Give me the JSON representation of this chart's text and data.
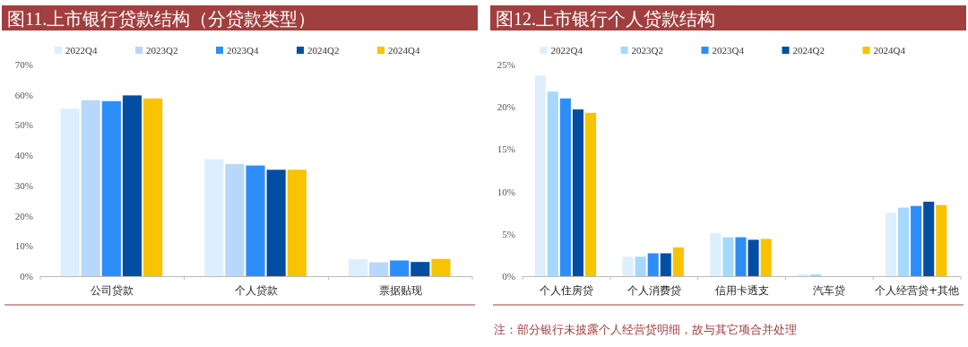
{
  "chart_data": [
    {
      "type": "bar",
      "title": "图11.上市银行贷款结构（分贷款类型）",
      "categories": [
        "公司贷款",
        "个人贷款",
        "票据贴现"
      ],
      "series": [
        {
          "name": "2022Q4",
          "color": "#ddeefc",
          "values": [
            55.4,
            38.7,
            5.6
          ]
        },
        {
          "name": "2023Q2",
          "color": "#b8d8fb",
          "values": [
            58.2,
            37.1,
            4.6
          ]
        },
        {
          "name": "2023Q4",
          "color": "#2e8ef7",
          "values": [
            57.9,
            36.6,
            5.2
          ]
        },
        {
          "name": "2024Q2",
          "color": "#034ea2",
          "values": [
            59.8,
            35.2,
            4.7
          ]
        },
        {
          "name": "2024Q4",
          "color": "#f8c300",
          "values": [
            58.8,
            35.2,
            5.7
          ]
        }
      ],
      "ylim": [
        0,
        70
      ],
      "yticks": [
        {
          "value": 0,
          "label": "0%"
        },
        {
          "value": 10,
          "label": "10%"
        },
        {
          "value": 20,
          "label": "20%"
        },
        {
          "value": 30,
          "label": "30%"
        },
        {
          "value": 40,
          "label": "40%"
        },
        {
          "value": 50,
          "label": "50%"
        },
        {
          "value": 60,
          "label": "60%"
        },
        {
          "value": 70,
          "label": "70%"
        }
      ],
      "legend": "top",
      "grid": false
    },
    {
      "type": "bar",
      "title": "图12.上市银行个人贷款结构",
      "categories": [
        "个人住房贷",
        "个人消费贷",
        "信用卡透支",
        "汽车贷",
        "个人经营贷+其他"
      ],
      "series": [
        {
          "name": "2022Q4",
          "color": "#ddeefc",
          "values": [
            23.7,
            2.3,
            5.1,
            0.2,
            7.5
          ]
        },
        {
          "name": "2023Q2",
          "color": "#a6d8fb",
          "values": [
            21.8,
            2.3,
            4.6,
            0.2,
            8.1
          ]
        },
        {
          "name": "2023Q4",
          "color": "#2e8ef7",
          "values": [
            21.0,
            2.7,
            4.6,
            null,
            8.3
          ]
        },
        {
          "name": "2024Q2",
          "color": "#034ea2",
          "values": [
            19.7,
            2.7,
            4.3,
            null,
            8.8
          ]
        },
        {
          "name": "2024Q4",
          "color": "#f8c300",
          "values": [
            19.3,
            3.4,
            4.4,
            null,
            8.4
          ]
        }
      ],
      "ylim": [
        0,
        25
      ],
      "yticks": [
        {
          "value": 0,
          "label": "0%"
        },
        {
          "value": 5,
          "label": "5%"
        },
        {
          "value": 10,
          "label": "10%"
        },
        {
          "value": 15,
          "label": "15%"
        },
        {
          "value": 20,
          "label": "20%"
        },
        {
          "value": 25,
          "label": "25%"
        }
      ],
      "legend": "top",
      "grid": false,
      "annotations": [
        "注：部分银行未披露个人经营贷明细，故与其它项合并处理"
      ]
    }
  ]
}
